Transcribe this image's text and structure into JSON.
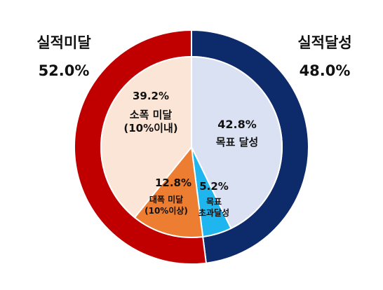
{
  "chart_data": {
    "type": "pie",
    "rings": [
      {
        "ring": "outer",
        "slices": [
          {
            "label": "실적달성",
            "value": 48.0,
            "display": "48.0%",
            "color": "#0d2a6b"
          },
          {
            "label": "실적미달",
            "value": 52.0,
            "display": "52.0%",
            "color": "#c00000"
          }
        ]
      },
      {
        "ring": "inner",
        "slices": [
          {
            "label_lines": [
              "목표 달성"
            ],
            "value": 42.8,
            "display": "42.8%",
            "color": "#d9e1f2"
          },
          {
            "label_lines": [
              "목표",
              "초과달성"
            ],
            "value": 5.2,
            "display": "5.2%",
            "color": "#1fb6f0"
          },
          {
            "label_lines": [
              "대폭 미달",
              "(10%이상)"
            ],
            "value": 12.8,
            "display": "12.8%",
            "color": "#ed7d31"
          },
          {
            "label_lines": [
              "소폭 미달",
              "(10%이내)"
            ],
            "value": 39.2,
            "display": "39.2%",
            "color": "#fbe5d6"
          }
        ]
      }
    ]
  }
}
